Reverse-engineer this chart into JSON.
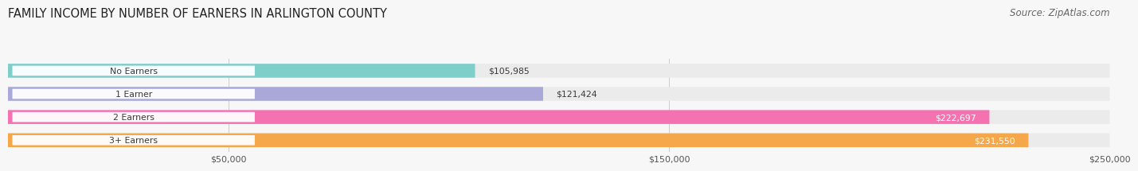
{
  "title": "FAMILY INCOME BY NUMBER OF EARNERS IN ARLINGTON COUNTY",
  "source": "Source: ZipAtlas.com",
  "categories": [
    "No Earners",
    "1 Earner",
    "2 Earners",
    "3+ Earners"
  ],
  "values": [
    105985,
    121424,
    222697,
    231550
  ],
  "bar_colors": [
    "#7ECECA",
    "#A9A8D8",
    "#F472B0",
    "#F5A84B"
  ],
  "track_color": "#EBEBEB",
  "background_color": "#f7f7f7",
  "xmax": 250000,
  "x_ticks": [
    50000,
    150000,
    250000
  ],
  "x_tick_labels": [
    "$50,000",
    "$150,000",
    "$250,000"
  ],
  "value_labels": [
    "$105,985",
    "$121,424",
    "$222,697",
    "$231,550"
  ],
  "title_fontsize": 10.5,
  "source_fontsize": 8.5,
  "bar_height": 0.6
}
